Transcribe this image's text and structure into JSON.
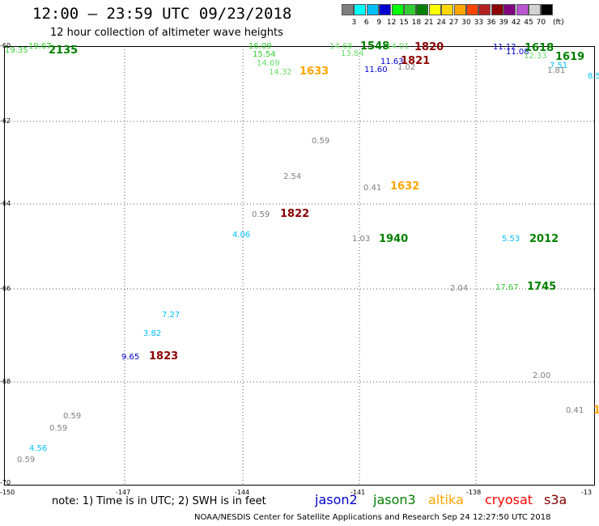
{
  "header": {
    "title": "12:00 – 23:59 UTC 09/23/2018",
    "subtitle": "12 hour collection of altimeter wave heights"
  },
  "colorscale": {
    "unit": "(ft)",
    "colors": [
      "#7f7f7f",
      "#00ffff",
      "#00bfff",
      "#0000cd",
      "#00ff00",
      "#32cd32",
      "#008000",
      "#ffff00",
      "#ffd700",
      "#ffa500",
      "#ff4500",
      "#b22222",
      "#8b0000",
      "#800080",
      "#ba55d3",
      "#d3d3d3",
      "#000000"
    ],
    "labels": [
      "3",
      "6",
      "9",
      "12",
      "15",
      "18",
      "21",
      "24",
      "27",
      "30",
      "33",
      "36",
      "39",
      "42",
      "45",
      "70"
    ]
  },
  "axes": {
    "lon_ticks": [
      "-150",
      "-147",
      "-144",
      "-141",
      "-138",
      "-13"
    ],
    "lat_ticks": [
      "-60",
      "-62",
      "-64",
      "-66",
      "-68",
      "-70"
    ]
  },
  "observations": [
    {
      "text": "19.67",
      "color": "#32cd32",
      "kind": "swh"
    },
    {
      "text": "19.35",
      "color": "#32cd32",
      "kind": "swh"
    },
    {
      "text": "2135",
      "color": "#008000",
      "kind": "time"
    },
    {
      "text": "16.09",
      "color": "#32cd32",
      "kind": "swh"
    },
    {
      "text": "15.54",
      "color": "#32cd32",
      "kind": "swh"
    },
    {
      "text": "14.69",
      "color": "#66dd66",
      "kind": "swh"
    },
    {
      "text": "14.32",
      "color": "#66dd66",
      "kind": "swh"
    },
    {
      "text": "1633",
      "color": "#ffa500",
      "kind": "time"
    },
    {
      "text": "14.68",
      "color": "#66dd66",
      "kind": "swh"
    },
    {
      "text": "1548",
      "color": "#008000",
      "kind": "time"
    },
    {
      "text": "14.01",
      "color": "#66dd66",
      "kind": "swh"
    },
    {
      "text": "1820",
      "color": "#8b0000",
      "kind": "time"
    },
    {
      "text": "13.84",
      "color": "#66dd66",
      "kind": "swh"
    },
    {
      "text": "11.63",
      "color": "#0000cd",
      "kind": "swh"
    },
    {
      "text": "1821",
      "color": "#8b0000",
      "kind": "time"
    },
    {
      "text": "1.02",
      "color": "#7f7f7f",
      "kind": "swh"
    },
    {
      "text": "11.60",
      "color": "#0000cd",
      "kind": "swh"
    },
    {
      "text": "11.12",
      "color": "#0000cd",
      "kind": "swh"
    },
    {
      "text": "11.08",
      "color": "#0000cd",
      "kind": "swh"
    },
    {
      "text": "1618",
      "color": "#008000",
      "kind": "time"
    },
    {
      "text": "12.33",
      "color": "#66dd66",
      "kind": "swh"
    },
    {
      "text": "1619",
      "color": "#008000",
      "kind": "time"
    },
    {
      "text": "7.51",
      "color": "#00bfff",
      "kind": "swh"
    },
    {
      "text": "1.81",
      "color": "#7f7f7f",
      "kind": "swh"
    },
    {
      "text": "8.5",
      "color": "#00bfff",
      "kind": "swh"
    },
    {
      "text": "0.59",
      "color": "#7f7f7f",
      "kind": "swh"
    },
    {
      "text": "2.54",
      "color": "#7f7f7f",
      "kind": "swh"
    },
    {
      "text": "0.41",
      "color": "#7f7f7f",
      "kind": "swh"
    },
    {
      "text": "1632",
      "color": "#ffa500",
      "kind": "time"
    },
    {
      "text": "0.59",
      "color": "#7f7f7f",
      "kind": "swh"
    },
    {
      "text": "1822",
      "color": "#8b0000",
      "kind": "time"
    },
    {
      "text": "4.06",
      "color": "#00bfff",
      "kind": "swh"
    },
    {
      "text": "1.03",
      "color": "#7f7f7f",
      "kind": "swh"
    },
    {
      "text": "1940",
      "color": "#008000",
      "kind": "time"
    },
    {
      "text": "5.53",
      "color": "#00bfff",
      "kind": "swh"
    },
    {
      "text": "2012",
      "color": "#008000",
      "kind": "time"
    },
    {
      "text": "2.04",
      "color": "#7f7f7f",
      "kind": "swh"
    },
    {
      "text": "17.67",
      "color": "#32cd32",
      "kind": "swh"
    },
    {
      "text": "1745",
      "color": "#008000",
      "kind": "time"
    },
    {
      "text": "7.27",
      "color": "#00bfff",
      "kind": "swh"
    },
    {
      "text": "3.82",
      "color": "#00bfff",
      "kind": "swh"
    },
    {
      "text": "9.65",
      "color": "#0000cd",
      "kind": "swh"
    },
    {
      "text": "1823",
      "color": "#8b0000",
      "kind": "time"
    },
    {
      "text": "2.00",
      "color": "#7f7f7f",
      "kind": "swh"
    },
    {
      "text": "0.41",
      "color": "#7f7f7f",
      "kind": "swh"
    },
    {
      "text": "1",
      "color": "#ffa500",
      "kind": "time"
    },
    {
      "text": "0.59",
      "color": "#7f7f7f",
      "kind": "swh"
    },
    {
      "text": "0.59",
      "color": "#7f7f7f",
      "kind": "swh"
    },
    {
      "text": "4.56",
      "color": "#00bfff",
      "kind": "swh"
    },
    {
      "text": "0.59",
      "color": "#7f7f7f",
      "kind": "swh"
    }
  ],
  "note": "note: 1) Time is in UTC; 2) SWH is in feet",
  "satellites": [
    {
      "name": "jason2",
      "color": "#0000cd"
    },
    {
      "name": "jason3",
      "color": "#008000"
    },
    {
      "name": "altika",
      "color": "#ffa500"
    },
    {
      "name": "cryosat",
      "color": "#ff0000"
    },
    {
      "name": "s3a",
      "color": "#8b0000"
    }
  ],
  "footer": "NOAA/NESDIS Center for Satellite Applications and Research    Sep 24 12:27:50 UTC 2018"
}
